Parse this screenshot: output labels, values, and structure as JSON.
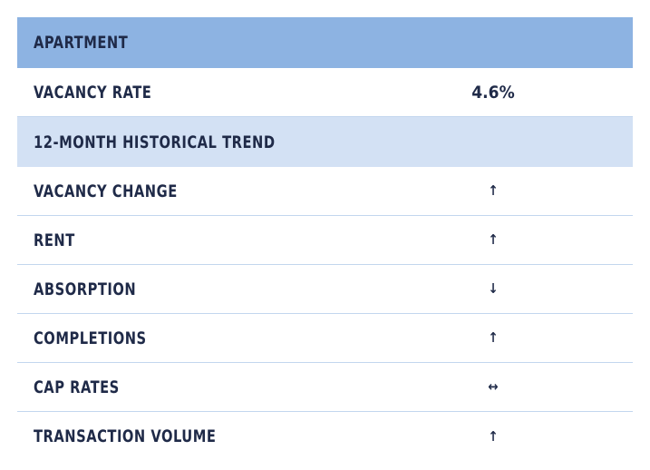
{
  "header": {
    "title": "APARTMENT"
  },
  "vacancy": {
    "label": "VACANCY RATE",
    "value": "4.6%"
  },
  "trend_section": {
    "title": "12-MONTH HISTORICAL TREND"
  },
  "trends": [
    {
      "label": "VACANCY CHANGE",
      "direction": "up",
      "arrow": "↑"
    },
    {
      "label": "RENT",
      "direction": "up",
      "arrow": "↑"
    },
    {
      "label": "ABSORPTION",
      "direction": "down",
      "arrow": "↓"
    },
    {
      "label": "COMPLETIONS",
      "direction": "up",
      "arrow": "↑"
    },
    {
      "label": "CAP RATES",
      "direction": "flat",
      "arrow": "↔"
    },
    {
      "label": "TRANSACTION VOLUME",
      "direction": "up",
      "arrow": "↑"
    }
  ]
}
